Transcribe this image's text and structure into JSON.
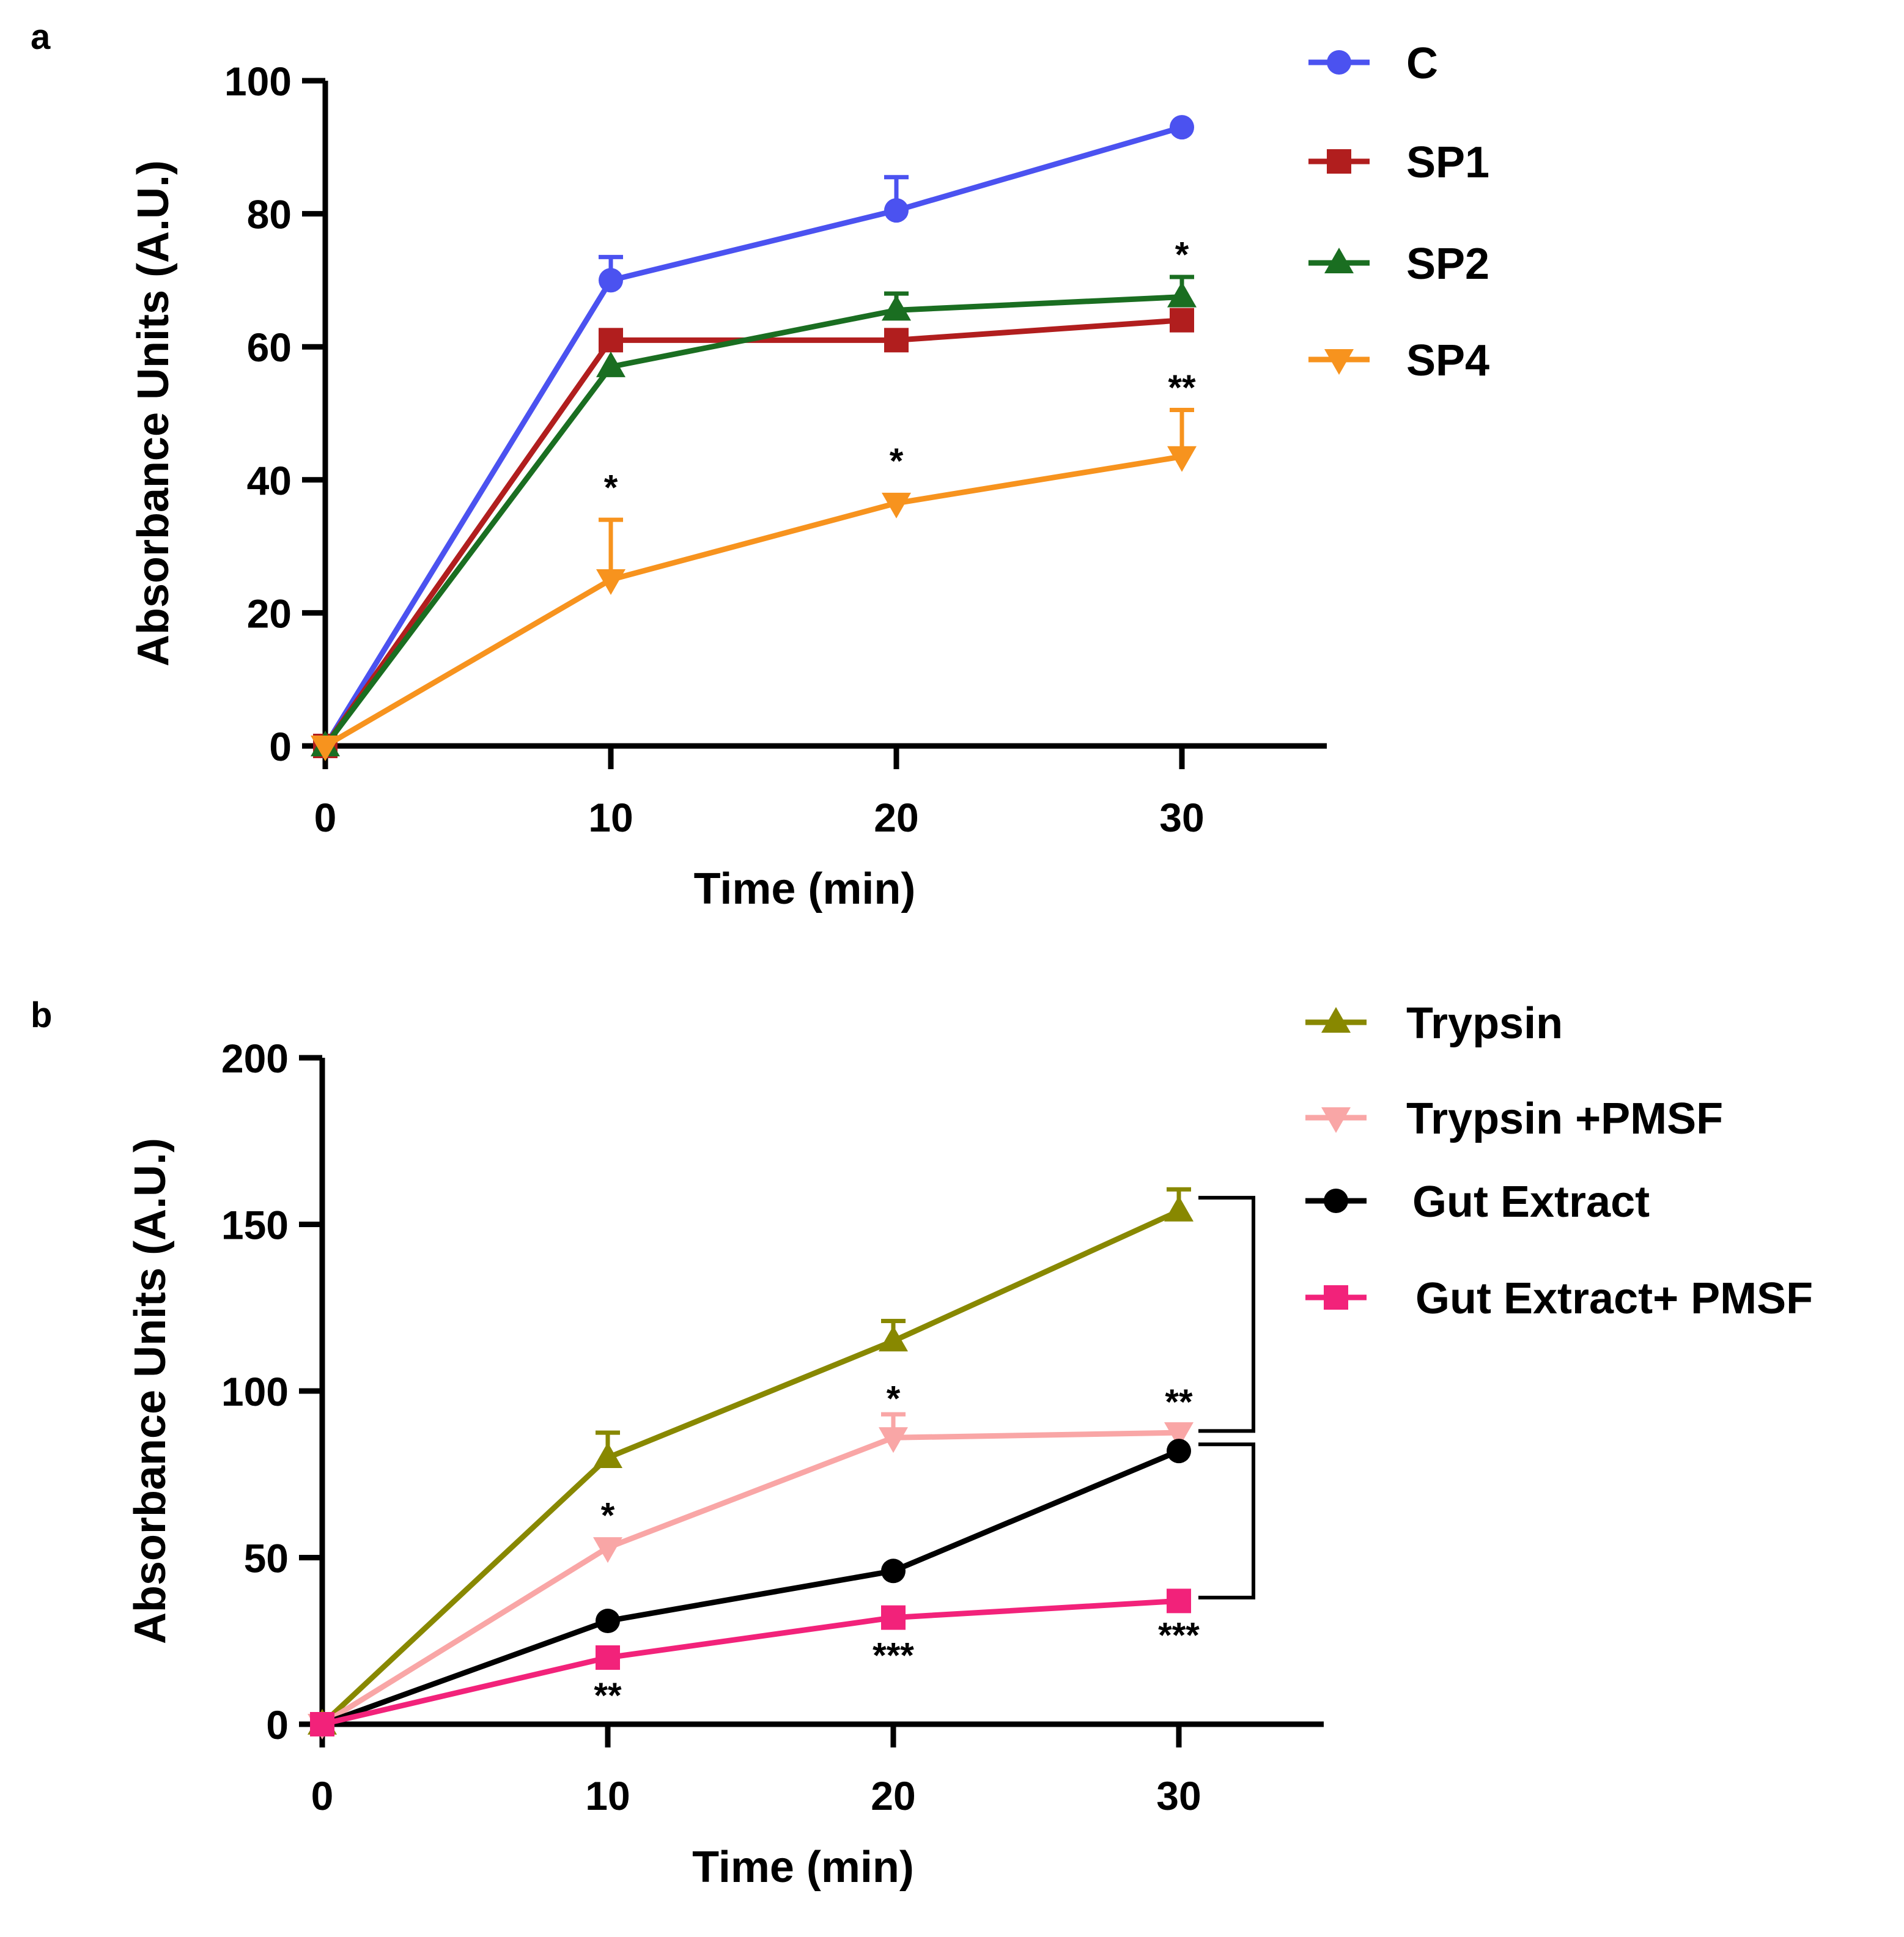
{
  "chart_data": [
    {
      "type": "line",
      "panel_label": "a",
      "title": "",
      "xlabel": "Time (min)",
      "ylabel": "Absorbance Units (A.U.)",
      "xlim": [
        0,
        35
      ],
      "ylim": [
        0,
        100
      ],
      "x_ticks": [
        0,
        10,
        20,
        30
      ],
      "y_ticks": [
        0,
        20,
        40,
        60,
        80,
        100
      ],
      "x_tick_labels": [
        "0",
        "10",
        "20",
        "30"
      ],
      "y_tick_labels": [
        "0",
        "20",
        "40",
        "60",
        "80",
        "100"
      ],
      "grid": false,
      "legend_position": "top-right-outside",
      "series": [
        {
          "name": "C",
          "color": "#4B52F0",
          "marker": "circle",
          "x": [
            0,
            10,
            20,
            30
          ],
          "y": [
            0,
            70,
            80.5,
            93
          ],
          "error": [
            0,
            3.5,
            5,
            0
          ]
        },
        {
          "name": "SP1",
          "color": "#B11E1E",
          "marker": "square",
          "x": [
            0,
            10,
            20,
            30
          ],
          "y": [
            0,
            61,
            61,
            64
          ],
          "error": [
            0,
            0,
            0,
            0
          ]
        },
        {
          "name": "SP2",
          "color": "#1A6E21",
          "marker": "triangle-up",
          "x": [
            0,
            10,
            20,
            30
          ],
          "y": [
            0,
            57,
            65.5,
            67.5
          ],
          "error": [
            0,
            0,
            2.5,
            3
          ]
        },
        {
          "name": "SP4",
          "color": "#F7931E",
          "marker": "triangle-down",
          "x": [
            0,
            10,
            20,
            30
          ],
          "y": [
            0,
            25,
            36.5,
            43.5
          ],
          "error": [
            0,
            9,
            0,
            7
          ]
        }
      ],
      "annotations": [
        {
          "text": "*",
          "x": 10,
          "y": 37
        },
        {
          "text": "*",
          "x": 20,
          "y": 41
        },
        {
          "text": "**",
          "x": 30,
          "y": 52
        },
        {
          "text": "*",
          "x": 30,
          "y": 72
        }
      ],
      "brackets": []
    },
    {
      "type": "line",
      "panel_label": "b",
      "title": "",
      "xlabel": "Time (min)",
      "ylabel": "Absorbance Units (A.U.)",
      "xlim": [
        0,
        35
      ],
      "ylim": [
        0,
        200
      ],
      "x_ticks": [
        0,
        10,
        20,
        30
      ],
      "y_ticks": [
        0,
        50,
        100,
        150,
        200
      ],
      "x_tick_labels": [
        "0",
        "10",
        "20",
        "30"
      ],
      "y_tick_labels": [
        "0",
        "50",
        "100",
        "150",
        "200"
      ],
      "grid": false,
      "legend_position": "top-right-outside",
      "series": [
        {
          "name": "Trypsin",
          "color": "#888800",
          "marker": "triangle-up",
          "x": [
            0,
            10,
            20,
            30
          ],
          "y": [
            0,
            80,
            115,
            154
          ],
          "error": [
            0,
            7.5,
            6,
            6.5
          ]
        },
        {
          "name": "Trypsin +PMSF",
          "color": "#F9A6A6",
          "marker": "triangle-down",
          "x": [
            0,
            10,
            20,
            30
          ],
          "y": [
            0,
            53,
            86,
            87.5
          ],
          "error": [
            0,
            0,
            7,
            0
          ]
        },
        {
          "name": "Gut Extract",
          "color": "#000000",
          "marker": "circle",
          "x": [
            0,
            10,
            20,
            30
          ],
          "y": [
            0,
            31,
            46,
            82
          ],
          "error": [
            0,
            0,
            0,
            0
          ]
        },
        {
          "name": "Gut Extract+ PMSF",
          "color": "#F2227A",
          "marker": "square",
          "x": [
            0,
            10,
            20,
            30
          ],
          "y": [
            0,
            20,
            32,
            37
          ],
          "error": [
            0,
            0,
            0,
            0
          ]
        }
      ],
      "annotations": [
        {
          "text": "*",
          "x": 10,
          "y": 59
        },
        {
          "text": "*",
          "x": 20,
          "y": 94
        },
        {
          "text": "**",
          "x": 30,
          "y": 93
        },
        {
          "text": "**",
          "x": 10,
          "y": 5
        },
        {
          "text": "***",
          "x": 20,
          "y": 17
        },
        {
          "text": "***",
          "x": 30,
          "y": 23
        }
      ],
      "brackets": [
        {
          "series_top": "Trypsin",
          "series_bottom": "Trypsin +PMSF",
          "y_top": 158,
          "y_bottom": 88
        },
        {
          "series_top": "Gut Extract",
          "series_bottom": "Gut Extract+ PMSF",
          "y_top": 84,
          "y_bottom": 38
        }
      ]
    }
  ]
}
